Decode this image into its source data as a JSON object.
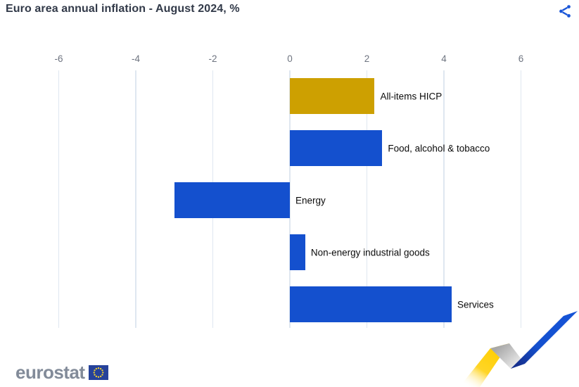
{
  "header": {
    "title": "Euro area annual inflation - August 2024, %"
  },
  "chart_data": {
    "type": "bar",
    "orientation": "horizontal",
    "title": "Euro area annual inflation - August 2024, %",
    "unit": "%",
    "categories": [
      "All-items HICP",
      "Food, alcohol & tobacco",
      "Energy",
      "Non-energy industrial goods",
      "Services"
    ],
    "values": [
      2.2,
      2.4,
      -3.0,
      0.4,
      4.2
    ],
    "bar_colors": [
      "#cda001",
      "#1450ce",
      "#1450ce",
      "#1450ce",
      "#1450ce"
    ],
    "xlim": [
      -6,
      6
    ],
    "x_ticks": [
      -6,
      -4,
      -2,
      0,
      2,
      4,
      6
    ],
    "grid": true,
    "legend": "none"
  },
  "footer": {
    "logo_text": "eurostat"
  },
  "colors": {
    "accent_blue": "#1450ce",
    "accent_gold": "#cda001",
    "share_icon_blue": "#1a56d8",
    "gridline": "#dfe7f0",
    "axis_text": "#6e7480",
    "title_text": "#323a49",
    "logo_gray": "#828b99",
    "flag_blue": "#26429a",
    "flag_stars": "#f6d32d",
    "ribbon_yellow": "#ffd20a",
    "ribbon_gray": "#a8a8a8"
  }
}
